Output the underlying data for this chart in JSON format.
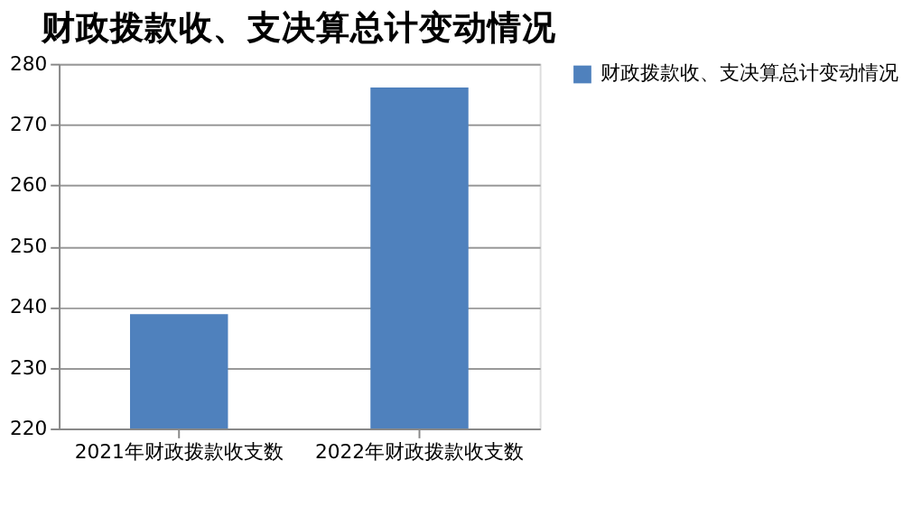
{
  "chart_data": {
    "type": "bar",
    "title": "财政拨款收、支决算总计变动情况",
    "categories": [
      "2021年财政拨款收支数",
      "2022年财政拨款收支数"
    ],
    "series": [
      {
        "name": "财政拨款收、支决算总计变动情况",
        "color": "#4f81bd",
        "values": [
          238.8,
          276.1
        ]
      }
    ],
    "ylim": [
      220,
      280
    ],
    "yticks": [
      220,
      230,
      240,
      250,
      260,
      270,
      280
    ],
    "grid": "y",
    "legend": "right"
  }
}
